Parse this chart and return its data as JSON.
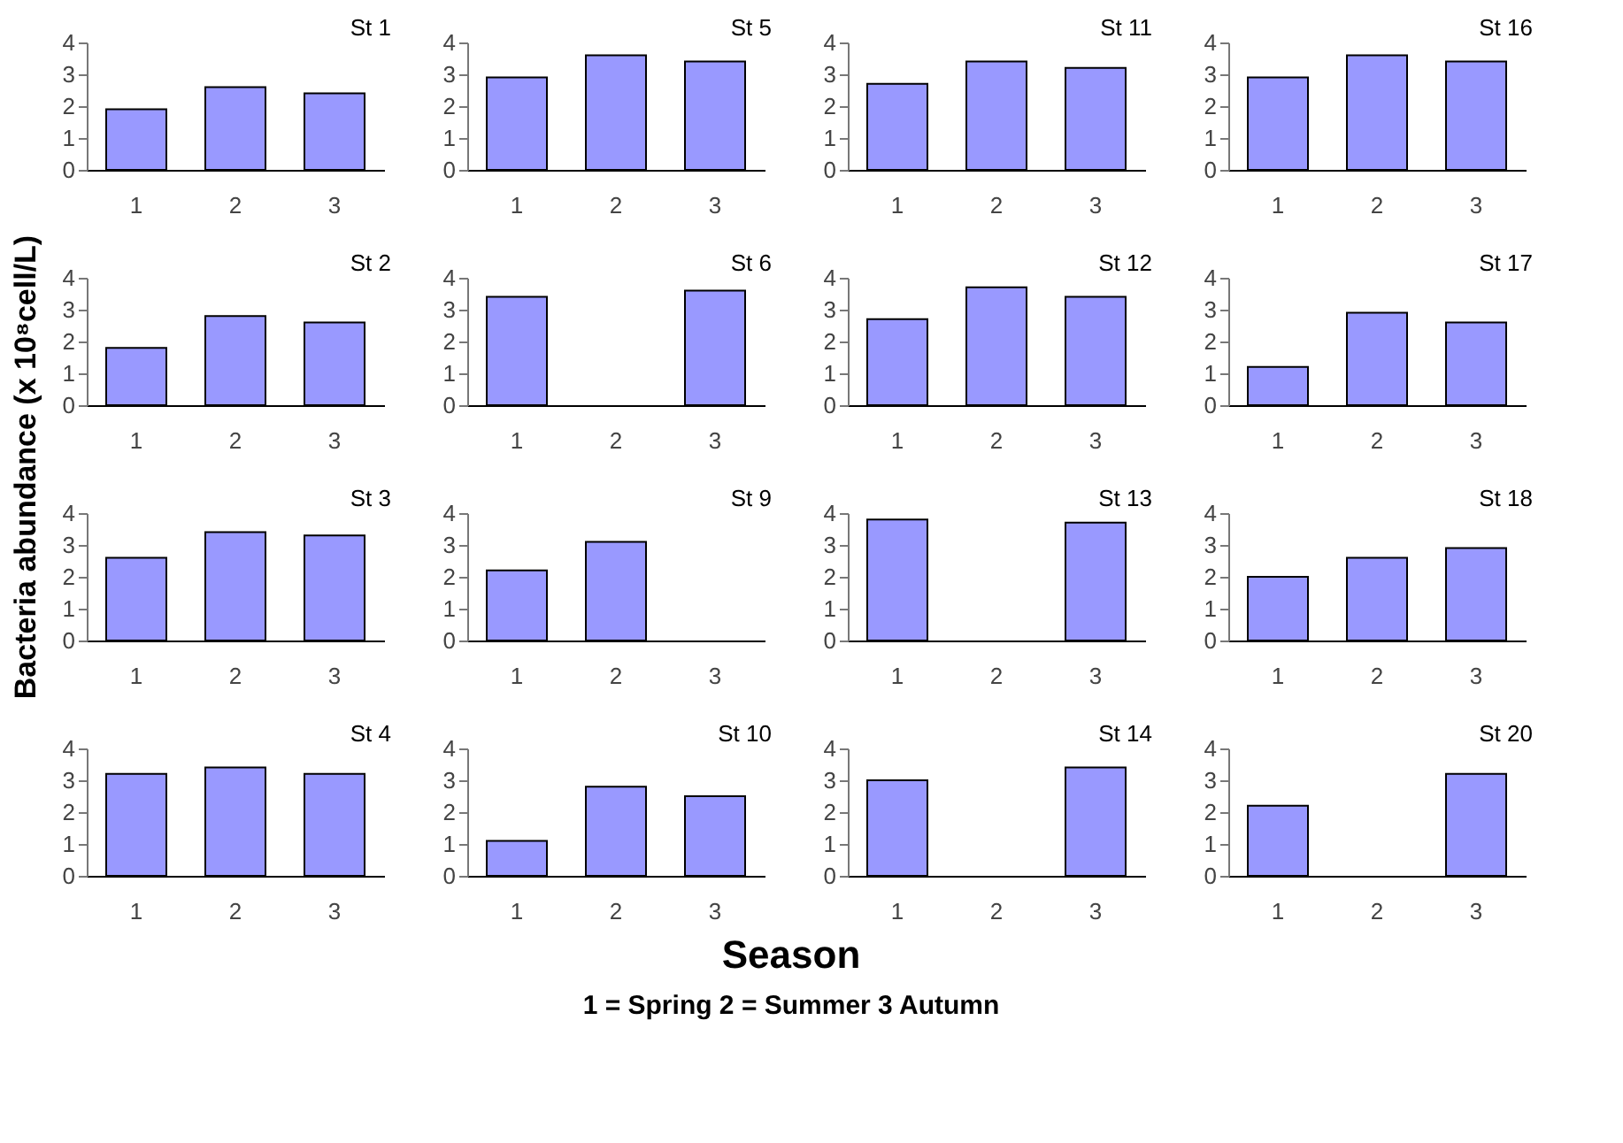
{
  "chart_data": [
    {
      "type": "bar",
      "title": "St 1",
      "ylabel": "Bacteria abundance (x 10⁸cell/L)",
      "categories": [
        "1",
        "2",
        "3"
      ],
      "values": [
        1.9,
        2.6,
        2.4
      ],
      "color": "#9999ff",
      "ylim": [
        0,
        4
      ],
      "yticks": [
        0,
        1,
        2,
        3,
        4
      ],
      "grid": false
    },
    {
      "type": "bar",
      "title": "St 5",
      "categories": [
        "1",
        "2",
        "3"
      ],
      "values": [
        2.9,
        3.6,
        3.4
      ],
      "color": "#9999ff",
      "ylim": [
        0,
        4
      ],
      "yticks": [
        0,
        1,
        2,
        3,
        4
      ],
      "grid": false
    },
    {
      "type": "bar",
      "title": "St 11",
      "categories": [
        "1",
        "2",
        "3"
      ],
      "values": [
        2.7,
        3.4,
        3.2
      ],
      "color": "#9999ff",
      "ylim": [
        0,
        4
      ],
      "yticks": [
        0,
        1,
        2,
        3,
        4
      ],
      "grid": false
    },
    {
      "type": "bar",
      "title": "St 16",
      "categories": [
        "1",
        "2",
        "3"
      ],
      "values": [
        2.9,
        3.6,
        3.4
      ],
      "color": "#9999ff",
      "ylim": [
        0,
        4
      ],
      "yticks": [
        0,
        1,
        2,
        3,
        4
      ],
      "grid": false
    },
    {
      "type": "bar",
      "title": "St 2",
      "categories": [
        "1",
        "2",
        "3"
      ],
      "values": [
        1.8,
        2.8,
        2.6
      ],
      "color": "#9999ff",
      "ylim": [
        0,
        4
      ],
      "yticks": [
        0,
        1,
        2,
        3,
        4
      ],
      "grid": false
    },
    {
      "type": "bar",
      "title": "St 6",
      "categories": [
        "1",
        "2",
        "3"
      ],
      "values": [
        3.4,
        null,
        3.6
      ],
      "color": "#9999ff",
      "ylim": [
        0,
        4
      ],
      "yticks": [
        0,
        1,
        2,
        3,
        4
      ],
      "grid": false
    },
    {
      "type": "bar",
      "title": "St 12",
      "categories": [
        "1",
        "2",
        "3"
      ],
      "values": [
        2.7,
        3.7,
        3.4
      ],
      "color": "#9999ff",
      "ylim": [
        0,
        4
      ],
      "yticks": [
        0,
        1,
        2,
        3,
        4
      ],
      "grid": false
    },
    {
      "type": "bar",
      "title": "St 17",
      "categories": [
        "1",
        "2",
        "3"
      ],
      "values": [
        1.2,
        2.9,
        2.6
      ],
      "color": "#9999ff",
      "ylim": [
        0,
        4
      ],
      "yticks": [
        0,
        1,
        2,
        3,
        4
      ],
      "grid": false
    },
    {
      "type": "bar",
      "title": "St 3",
      "categories": [
        "1",
        "2",
        "3"
      ],
      "values": [
        2.6,
        3.4,
        3.3
      ],
      "color": "#9999ff",
      "ylim": [
        0,
        4
      ],
      "yticks": [
        0,
        1,
        2,
        3,
        4
      ],
      "grid": false
    },
    {
      "type": "bar",
      "title": "St 9",
      "categories": [
        "1",
        "2",
        "3"
      ],
      "values": [
        2.2,
        3.1,
        null
      ],
      "color": "#9999ff",
      "ylim": [
        0,
        4
      ],
      "yticks": [
        0,
        1,
        2,
        3,
        4
      ],
      "grid": false
    },
    {
      "type": "bar",
      "title": "St 13",
      "categories": [
        "1",
        "2",
        "3"
      ],
      "values": [
        3.8,
        null,
        3.7
      ],
      "color": "#9999ff",
      "ylim": [
        0,
        4
      ],
      "yticks": [
        0,
        1,
        2,
        3,
        4
      ],
      "grid": false
    },
    {
      "type": "bar",
      "title": "St 18",
      "categories": [
        "1",
        "2",
        "3"
      ],
      "values": [
        2.0,
        2.6,
        2.9
      ],
      "color": "#9999ff",
      "ylim": [
        0,
        4
      ],
      "yticks": [
        0,
        1,
        2,
        3,
        4
      ],
      "grid": false
    },
    {
      "type": "bar",
      "title": "St 4",
      "categories": [
        "1",
        "2",
        "3"
      ],
      "values": [
        3.2,
        3.4,
        3.2
      ],
      "color": "#9999ff",
      "ylim": [
        0,
        4
      ],
      "yticks": [
        0,
        1,
        2,
        3,
        4
      ],
      "grid": false
    },
    {
      "type": "bar",
      "title": "St 10",
      "categories": [
        "1",
        "2",
        "3"
      ],
      "values": [
        1.1,
        2.8,
        2.5
      ],
      "color": "#9999ff",
      "ylim": [
        0,
        4
      ],
      "yticks": [
        0,
        1,
        2,
        3,
        4
      ],
      "grid": false
    },
    {
      "type": "bar",
      "title": "St 14",
      "categories": [
        "1",
        "2",
        "3"
      ],
      "values": [
        3.0,
        null,
        3.4
      ],
      "color": "#9999ff",
      "ylim": [
        0,
        4
      ],
      "yticks": [
        0,
        1,
        2,
        3,
        4
      ],
      "grid": false
    },
    {
      "type": "bar",
      "title": "St 20",
      "categories": [
        "1",
        "2",
        "3"
      ],
      "values": [
        2.2,
        null,
        3.2
      ],
      "color": "#9999ff",
      "ylim": [
        0,
        4
      ],
      "yticks": [
        0,
        1,
        2,
        3,
        4
      ],
      "grid": false
    },
    {
      "type": "other",
      "title": "Season",
      "annotations": [
        "1 = Spring  2 = Summer  3  Autumn"
      ]
    }
  ]
}
